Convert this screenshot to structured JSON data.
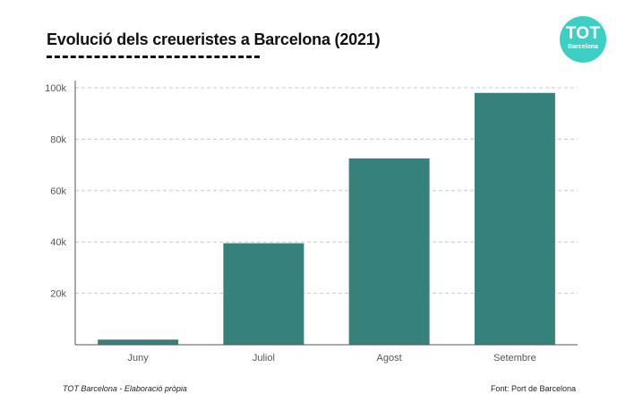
{
  "title": "Evolució dels creueristes a Barcelona (2021)",
  "logo": {
    "main": "TOT",
    "sub": "Barcelona",
    "color": "#3ecfc4"
  },
  "footer": {
    "left": "TOT Barcelona - Elaboració pròpia",
    "right": "Font: Port de Barcelona"
  },
  "colors": {
    "bar": "#37817d",
    "grid": "#c8c8c8",
    "axis": "#555555",
    "tick_text": "#555555"
  },
  "chart_data": {
    "type": "bar",
    "title": "Evolució dels creueristes a Barcelona (2021)",
    "categories": [
      "Juny",
      "Juliol",
      "Agost",
      "Setembre"
    ],
    "values": [
      2000,
      39500,
      72500,
      98000
    ],
    "ylim": [
      0,
      100000
    ],
    "yticks": [
      0,
      20000,
      40000,
      60000,
      80000,
      100000
    ],
    "ytick_labels": [
      "",
      "20k",
      "40k",
      "60k",
      "80k",
      "100k"
    ],
    "grid": true,
    "xlabel": "",
    "ylabel": ""
  }
}
